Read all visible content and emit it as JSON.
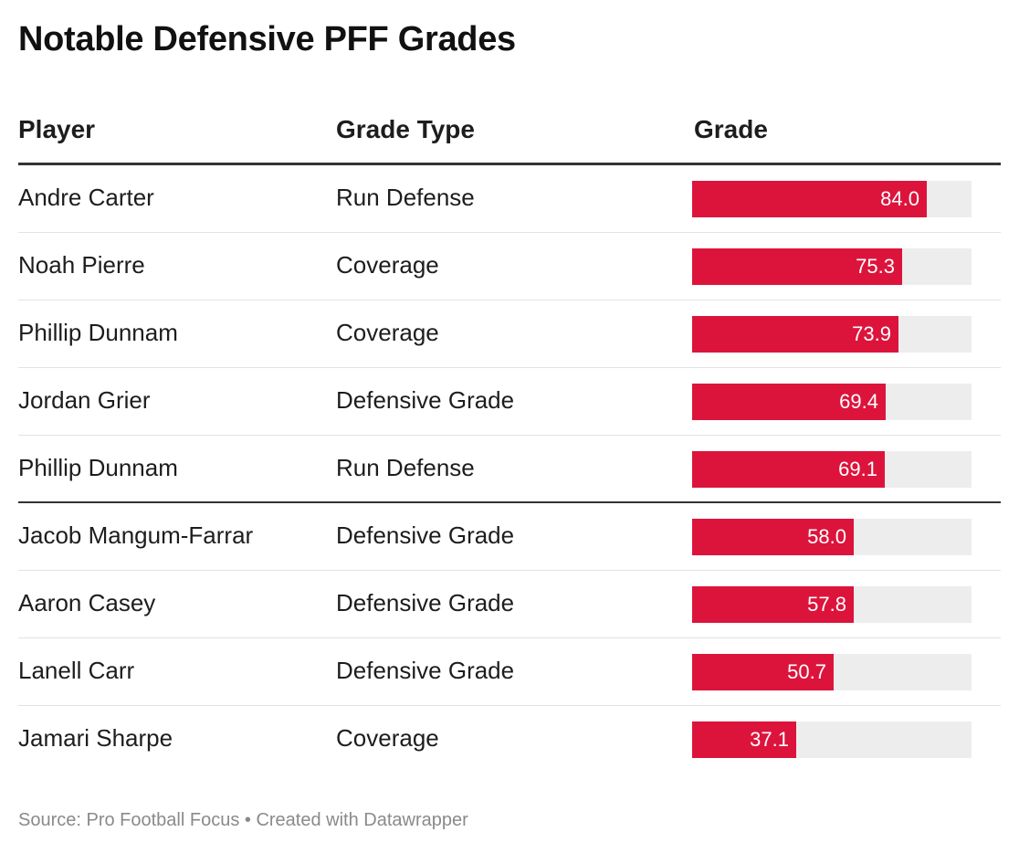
{
  "title": "Notable Defensive PFF Grades",
  "columns": {
    "player": "Player",
    "grade_type": "Grade Type",
    "grade": "Grade"
  },
  "colors": {
    "bar": "#dc143c",
    "track": "#ededed"
  },
  "chart_data": {
    "type": "table",
    "title": "Notable Defensive PFF Grades",
    "columns": [
      "Player",
      "Grade Type",
      "Grade"
    ],
    "bar_max": 100,
    "rows": [
      {
        "player": "Andre Carter",
        "grade_type": "Run Defense",
        "grade": 84.0,
        "grade_label": "84.0"
      },
      {
        "player": "Noah Pierre",
        "grade_type": "Coverage",
        "grade": 75.3,
        "grade_label": "75.3"
      },
      {
        "player": "Phillip Dunnam",
        "grade_type": "Coverage",
        "grade": 73.9,
        "grade_label": "73.9"
      },
      {
        "player": "Jordan Grier",
        "grade_type": "Defensive Grade",
        "grade": 69.4,
        "grade_label": "69.4"
      },
      {
        "player": "Phillip Dunnam",
        "grade_type": "Run Defense",
        "grade": 69.1,
        "grade_label": "69.1"
      },
      {
        "player": "Jacob Mangum-Farrar",
        "grade_type": "Defensive Grade",
        "grade": 58.0,
        "grade_label": "58.0"
      },
      {
        "player": "Aaron Casey",
        "grade_type": "Defensive Grade",
        "grade": 57.8,
        "grade_label": "57.8"
      },
      {
        "player": "Lanell Carr",
        "grade_type": "Defensive Grade",
        "grade": 50.7,
        "grade_label": "50.7"
      },
      {
        "player": "Jamari Sharpe",
        "grade_type": "Coverage",
        "grade": 37.1,
        "grade_label": "37.1"
      }
    ],
    "group_break_after": 5
  },
  "footer": {
    "source": "Source: Pro Football Focus • Created with Datawrapper"
  }
}
